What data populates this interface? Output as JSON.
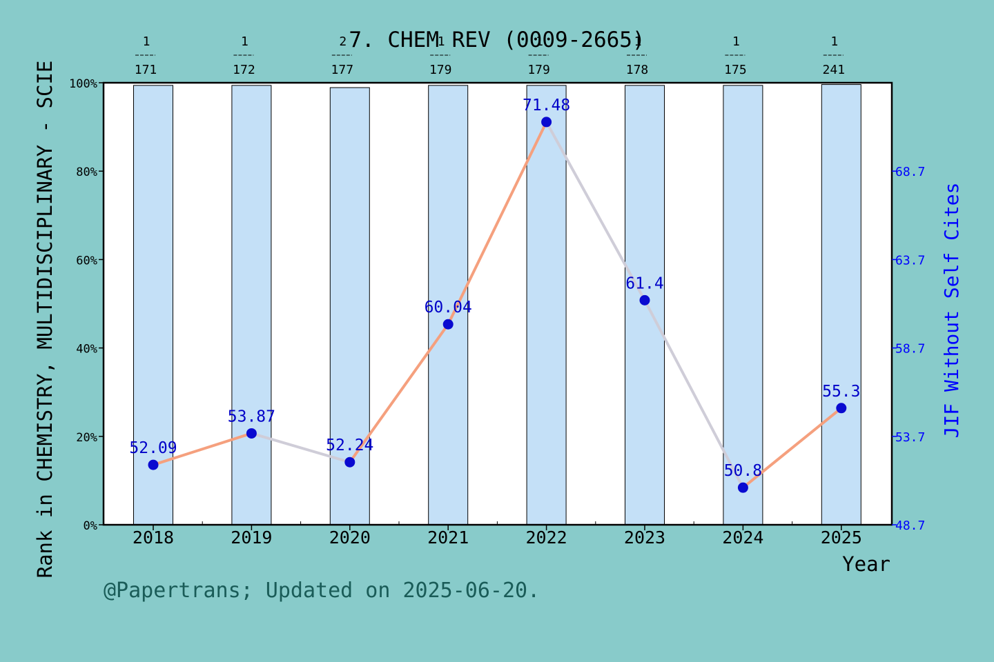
{
  "chart_data": {
    "type": "bar",
    "title": "7. CHEM REV (0009-2665)",
    "xlabel": "Year",
    "ylabel": "Rank in CHEMISTRY, MULTIDISCIPLINARY - SCIE",
    "y2label": "JIF Without Self Cites",
    "footer": "@Papertrans; Updated on 2025-06-20.",
    "categories": [
      "2018",
      "2019",
      "2020",
      "2021",
      "2022",
      "2023",
      "2024",
      "2025"
    ],
    "ylim": [
      0,
      100
    ],
    "y_ticks": [
      "0%",
      "20%",
      "40%",
      "60%",
      "80%",
      "100%"
    ],
    "y2lim": [
      48.7,
      73.7
    ],
    "y2_ticks": [
      "48.7",
      "53.7",
      "58.7",
      "63.7",
      "68.7"
    ],
    "rank_labels": [
      {
        "rank": "1",
        "total": "171"
      },
      {
        "rank": "1",
        "total": "172"
      },
      {
        "rank": "2",
        "total": "177"
      },
      {
        "rank": "1",
        "total": "179"
      },
      {
        "rank": "1",
        "total": "179"
      },
      {
        "rank": "1",
        "total": "178"
      },
      {
        "rank": "1",
        "total": "175"
      },
      {
        "rank": "1",
        "total": "241"
      }
    ],
    "series": [
      {
        "type": "bar",
        "values": [
          99.4,
          99.4,
          98.9,
          99.4,
          99.4,
          99.4,
          99.4,
          99.6
        ]
      },
      {
        "type": "line",
        "axis": "right",
        "values": [
          52.09,
          53.87,
          52.24,
          60.04,
          71.48,
          61.4,
          50.8,
          55.3
        ],
        "labels": [
          "52.09",
          "53.87",
          "52.24",
          "60.04",
          "71.48",
          "61.4",
          "50.8",
          "55.3"
        ]
      }
    ],
    "colors": {
      "background": "#88cbca",
      "plot": "#ffffff",
      "bar": "#c4e0f7",
      "line_up": "#f5a07e",
      "line_down": "#cfcdd8",
      "marker": "#0a0ad0",
      "right_axis": "#0000ff",
      "footer": "#1a5c58"
    },
    "grid": false
  }
}
